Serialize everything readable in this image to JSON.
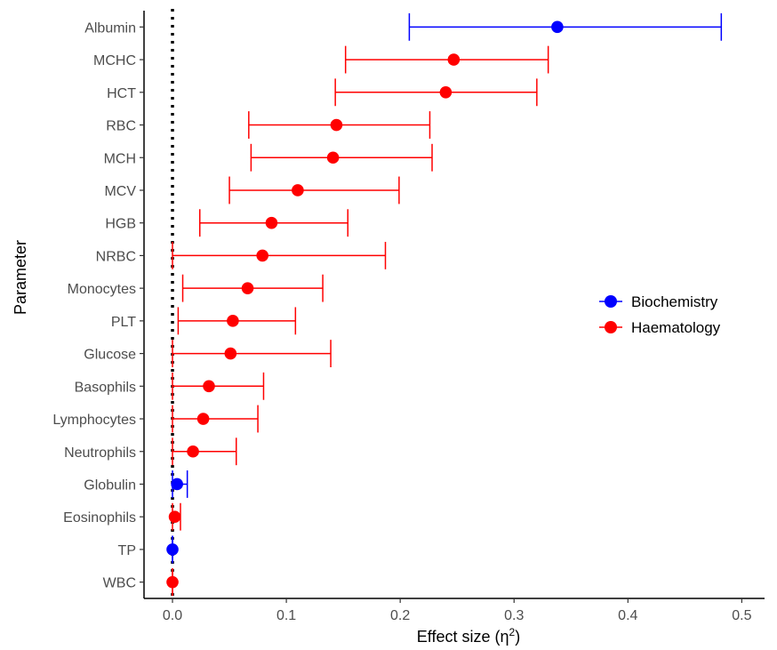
{
  "chart_data": {
    "type": "scatter",
    "title": "",
    "xlabel": "Effect size (η",
    "xlabel_sup": "2",
    "xlabel_close": ")",
    "ylabel": "Parameter",
    "xlim": [
      -0.025,
      0.52
    ],
    "xticks": [
      "0.0",
      "0.1",
      "0.2",
      "0.3",
      "0.4",
      "0.5"
    ],
    "xtick_values": [
      0,
      0.1,
      0.2,
      0.3,
      0.4,
      0.5
    ],
    "reference_line": 0,
    "grid": false,
    "legend_position": "right",
    "categories": [
      "Albumin",
      "MCHC",
      "HCT",
      "RBC",
      "MCH",
      "MCV",
      "HGB",
      "NRBC",
      "Monocytes",
      "PLT",
      "Glucose",
      "Basophils",
      "Lymphocytes",
      "Neutrophils",
      "Globulin",
      "Eosinophils",
      "TP",
      "WBC"
    ],
    "series": [
      {
        "name": "Biochemistry",
        "color": "#0000ff",
        "points": [
          {
            "category": "Albumin",
            "value": 0.338,
            "ci_low": 0.208,
            "ci_high": 0.482
          },
          {
            "category": "Globulin",
            "value": 0.004,
            "ci_low": 0.0,
            "ci_high": 0.013
          },
          {
            "category": "TP",
            "value": 0.0,
            "ci_low": 0.0,
            "ci_high": 0.0
          }
        ]
      },
      {
        "name": "Haematology",
        "color": "#ff0000",
        "points": [
          {
            "category": "MCHC",
            "value": 0.247,
            "ci_low": 0.152,
            "ci_high": 0.33
          },
          {
            "category": "HCT",
            "value": 0.24,
            "ci_low": 0.143,
            "ci_high": 0.32
          },
          {
            "category": "RBC",
            "value": 0.144,
            "ci_low": 0.067,
            "ci_high": 0.226
          },
          {
            "category": "MCH",
            "value": 0.141,
            "ci_low": 0.069,
            "ci_high": 0.228
          },
          {
            "category": "MCV",
            "value": 0.11,
            "ci_low": 0.05,
            "ci_high": 0.199
          },
          {
            "category": "HGB",
            "value": 0.087,
            "ci_low": 0.024,
            "ci_high": 0.154
          },
          {
            "category": "NRBC",
            "value": 0.079,
            "ci_low": 0.0,
            "ci_high": 0.187
          },
          {
            "category": "Monocytes",
            "value": 0.066,
            "ci_low": 0.009,
            "ci_high": 0.132
          },
          {
            "category": "PLT",
            "value": 0.053,
            "ci_low": 0.005,
            "ci_high": 0.108
          },
          {
            "category": "Glucose",
            "value": 0.051,
            "ci_low": 0.0,
            "ci_high": 0.139
          },
          {
            "category": "Basophils",
            "value": 0.032,
            "ci_low": 0.0,
            "ci_high": 0.08
          },
          {
            "category": "Lymphocytes",
            "value": 0.027,
            "ci_low": 0.0,
            "ci_high": 0.075
          },
          {
            "category": "Neutrophils",
            "value": 0.018,
            "ci_low": 0.0,
            "ci_high": 0.056
          },
          {
            "category": "Eosinophils",
            "value": 0.002,
            "ci_low": 0.0,
            "ci_high": 0.007
          },
          {
            "category": "WBC",
            "value": 0.0,
            "ci_low": 0.0,
            "ci_high": 0.0
          }
        ]
      }
    ]
  }
}
